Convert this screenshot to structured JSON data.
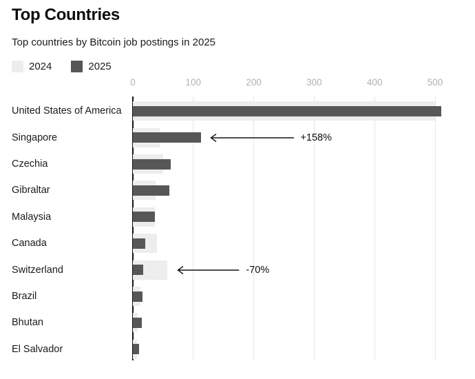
{
  "page": {
    "title": "Top Countries",
    "subtitle": "Top countries by Bitcoin job postings in 2025"
  },
  "chart_data": {
    "type": "bar",
    "orientation": "horizontal",
    "title": "Top Countries",
    "subtitle": "Top countries by Bitcoin job postings in 2025",
    "categories": [
      "United States of America",
      "Singapore",
      "Czechia",
      "Gibraltar",
      "Malaysia",
      "Canada",
      "Switzerland",
      "Brazil",
      "Bhutan",
      "El Salvador"
    ],
    "series": [
      {
        "name": "2024",
        "color": "#ededed",
        "values": [
          500,
          44,
          50,
          38,
          36,
          40,
          57,
          13,
          8,
          7
        ]
      },
      {
        "name": "2025",
        "color": "#575757",
        "values": [
          510,
          113,
          63,
          60,
          37,
          20,
          17,
          16,
          15,
          10
        ]
      }
    ],
    "xlim": [
      0,
      500
    ],
    "x_ticks": [
      0,
      100,
      200,
      300,
      400,
      500
    ],
    "grid": true,
    "legend_position": "top-left",
    "annotations": [
      {
        "text": "+158%",
        "category": "Singapore",
        "arrow_to_value": 127,
        "arrow_from_value": 267
      },
      {
        "text": "-70%",
        "category": "Switzerland",
        "arrow_to_value": 73,
        "arrow_from_value": 177
      }
    ],
    "colors": {
      "axis_line": "#141414",
      "gridline": "#e7e7e7",
      "tick_label": "#b0b0b0",
      "text": "#1a1a1a"
    }
  }
}
